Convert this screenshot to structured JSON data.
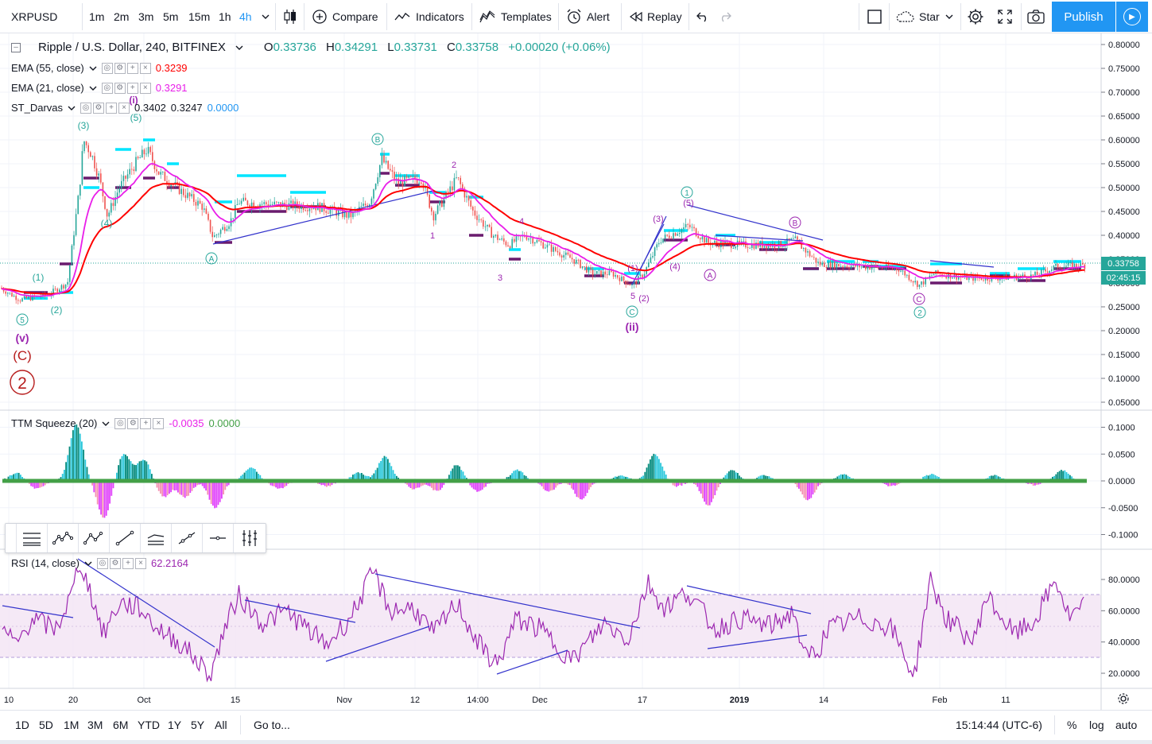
{
  "toolbar": {
    "symbol": "XRPUSD",
    "intervals": [
      "1m",
      "2m",
      "3m",
      "5m",
      "15m",
      "1h",
      "4h"
    ],
    "active_interval": "4h",
    "compare_label": "Compare",
    "indicators_label": "Indicators",
    "templates_label": "Templates",
    "alert_label": "Alert",
    "replay_label": "Replay",
    "star_label": "Star",
    "publish_label": "Publish"
  },
  "legend": {
    "title": "Ripple / U.S. Dollar, 240, BITFINEX",
    "ohlc": [
      {
        "label": "O",
        "value": "0.33736"
      },
      {
        "label": "H",
        "value": "0.34291"
      },
      {
        "label": "L",
        "value": "0.33731"
      },
      {
        "label": "C",
        "value": "0.33758"
      }
    ],
    "change": "+0.00020 (+0.06%)",
    "ema55_name": "EMA (55, close)",
    "ema55_value": "0.3239",
    "ema21_name": "EMA (21, close)",
    "ema21_value": "0.3291",
    "darvas_name": "ST_Darvas",
    "darvas_values": [
      "0.3402",
      "0.3247",
      "0.0000"
    ],
    "ttm_name": "TTM Squeeze (20)",
    "ttm_values": [
      "-0.0035",
      "0.0000"
    ],
    "rsi_name": "RSI (14, close)",
    "rsi_value": "62.2164"
  },
  "price_scale": {
    "labels": [
      "0.80000",
      "0.75000",
      "0.70000",
      "0.65000",
      "0.60000",
      "0.55000",
      "0.50000",
      "0.45000",
      "0.40000",
      "0.35000",
      "0.30000",
      "0.25000",
      "0.20000",
      "0.15000",
      "0.10000",
      "0.05000"
    ],
    "last_price": "0.33758",
    "countdown": "02:45:15"
  },
  "ttm_scale": {
    "labels": [
      "0.1000",
      "0.0500",
      "0.0000",
      "-0.0500",
      "-0.1000"
    ]
  },
  "rsi_scale": {
    "labels": [
      "80.0000",
      "60.0000",
      "40.0000",
      "20.0000"
    ]
  },
  "time_axis": {
    "labels": [
      "10",
      "20",
      "Oct",
      "15",
      "Nov",
      "12",
      "14:00",
      "Dec",
      "17",
      "2019",
      "14",
      "Feb",
      "11"
    ]
  },
  "wave_labels": [
    "(3)",
    "(5)",
    "(i)",
    "(4)",
    "(1)",
    "(2)",
    "(v)",
    "(C)",
    "2",
    "A",
    "B",
    "1",
    "2",
    "4",
    "3",
    "5",
    "(1)",
    "(2)",
    "(3)",
    "(4)",
    "(5)",
    "C",
    "(ii)",
    "1",
    "A",
    "B",
    "C",
    "2"
  ],
  "bottom_bar": {
    "ranges": [
      "1D",
      "5D",
      "1M",
      "3M",
      "6M",
      "YTD",
      "1Y",
      "5Y",
      "All"
    ],
    "goto_label": "Go to...",
    "clock": "15:14:44 (UTC-6)",
    "percent_label": "%",
    "log_label": "log",
    "auto_label": "auto"
  },
  "colors": {
    "accent": "#2196f3",
    "up": "#26a69a",
    "ema55": "#ff0000",
    "ema21": "#e91ee9",
    "darvas_top": "#00e5ff",
    "darvas_bottom": "#6a1b6e",
    "wave_cyan": "#26a69a",
    "wave_purple": "#9c27b0",
    "wave_darkred": "#b71c1c",
    "rsi": "#9c27b0",
    "trendline": "#3333cc"
  },
  "chart_data": {
    "type": "line",
    "title": "Ripple / U.S. Dollar, 240, BITFINEX",
    "x": [
      "10",
      "20",
      "Oct",
      "15",
      "Nov",
      "12",
      "14:00",
      "Dec",
      "17",
      "2019",
      "14",
      "Feb",
      "11"
    ],
    "series": [
      {
        "name": "XRPUSD close",
        "values": [
          0.27,
          0.29,
          0.55,
          0.42,
          0.45,
          0.5,
          0.37,
          0.32,
          0.31,
          0.38,
          0.33,
          0.31,
          0.32
        ]
      },
      {
        "name": "EMA (55, close)",
        "values": [
          0.28,
          0.28,
          0.52,
          0.45,
          0.45,
          0.49,
          0.4,
          0.34,
          0.32,
          0.37,
          0.34,
          0.32,
          0.32
        ]
      },
      {
        "name": "EMA (21, close)",
        "values": [
          0.27,
          0.29,
          0.56,
          0.44,
          0.45,
          0.5,
          0.39,
          0.33,
          0.31,
          0.38,
          0.33,
          0.31,
          0.32
        ]
      }
    ],
    "ylim": [
      0.05,
      0.8
    ]
  }
}
